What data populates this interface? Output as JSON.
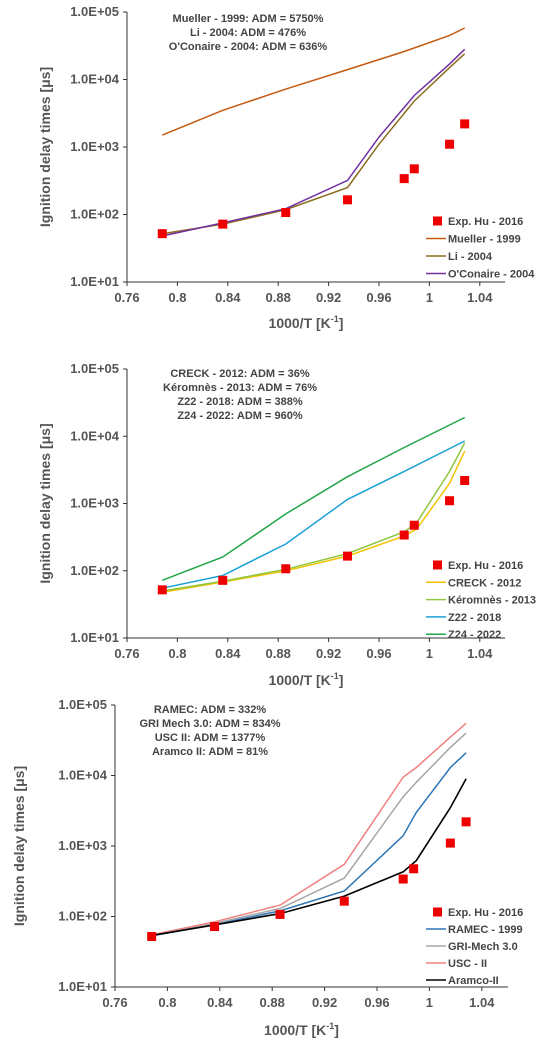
{
  "chart_data": [
    {
      "type": "line",
      "yscale": "log",
      "xlabel": "1000/T [K",
      "xlabel_sup": "-1",
      "xlabel_end": "]",
      "ylabel": "Ignition delay times [μs]",
      "xlim": [
        0.76,
        1.06
      ],
      "ylim": [
        10,
        100000
      ],
      "x_ticks": [
        "0.76",
        "0.8",
        "0.84",
        "0.88",
        "0.92",
        "0.96",
        "1",
        "1.04"
      ],
      "x_tick_values": [
        0.76,
        0.8,
        0.84,
        0.88,
        0.92,
        0.96,
        1.0,
        1.04
      ],
      "y_ticks": [
        "1.0E+01",
        "1.0E+02",
        "1.0E+03",
        "1.0E+04",
        "1.0E+05"
      ],
      "y_tick_values": [
        10,
        100,
        1000,
        10000,
        100000
      ],
      "annotations": [
        "Mueller - 1999: ADM = 5750%",
        "Li - 2004: ADM = 476%",
        "O'Conaire - 2004: ADM = 636%"
      ],
      "legend_position": "bottom-right",
      "experiment": {
        "name": "Exp. Hu - 2016",
        "color": "#ee0000",
        "x": [
          0.788,
          0.836,
          0.886,
          0.935,
          0.98,
          0.988,
          1.016,
          1.028
        ],
        "y": [
          52,
          72,
          107,
          165,
          340,
          475,
          1100,
          2200
        ]
      },
      "series": [
        {
          "name": "Mueller - 1999",
          "color": "#c55a11",
          "x": [
            0.788,
            0.836,
            0.886,
            0.935,
            0.98,
            1.016,
            1.028
          ],
          "y": [
            1500,
            3500,
            7200,
            14000,
            26000,
            45000,
            58000
          ]
        },
        {
          "name": "Li - 2004",
          "color": "#8c6d1f",
          "x": [
            0.788,
            0.836,
            0.886,
            0.935,
            0.96,
            0.988,
            1.016,
            1.028
          ],
          "y": [
            52,
            72,
            118,
            250,
            1100,
            4800,
            15000,
            24000
          ]
        },
        {
          "name": "O'Conaire - 2004",
          "color": "#7030a0",
          "x": [
            0.788,
            0.836,
            0.886,
            0.935,
            0.96,
            0.988,
            1.016,
            1.028
          ],
          "y": [
            48,
            75,
            122,
            320,
            1400,
            5800,
            17000,
            28000
          ]
        }
      ]
    },
    {
      "type": "line",
      "yscale": "log",
      "xlabel": "1000/T [K",
      "xlabel_sup": "-1",
      "xlabel_end": "]",
      "ylabel": "Ignition delay times [μs]",
      "xlim": [
        0.76,
        1.06
      ],
      "ylim": [
        10,
        100000
      ],
      "x_ticks": [
        "0.76",
        "0.8",
        "0.84",
        "0.88",
        "0.92",
        "0.96",
        "1",
        "1.04"
      ],
      "x_tick_values": [
        0.76,
        0.8,
        0.84,
        0.88,
        0.92,
        0.96,
        1.0,
        1.04
      ],
      "y_ticks": [
        "1.0E+01",
        "1.0E+02",
        "1.0E+03",
        "1.0E+04",
        "1.0E+05"
      ],
      "y_tick_values": [
        10,
        100,
        1000,
        10000,
        100000
      ],
      "annotations": [
        "CRECK - 2012: ADM = 36%",
        "Kéromnès - 2013: ADM = 76%",
        "Z22 - 2018: ADM = 388%",
        "Z24 - 2022: ADM = 960%"
      ],
      "legend_position": "bottom-right",
      "experiment": {
        "name": "Exp. Hu - 2016",
        "color": "#ee0000",
        "x": [
          0.788,
          0.836,
          0.886,
          0.935,
          0.98,
          0.988,
          1.016,
          1.028
        ],
        "y": [
          52,
          72,
          107,
          165,
          340,
          475,
          1100,
          2200
        ]
      },
      "series": [
        {
          "name": "CRECK - 2012",
          "color": "#f2c200",
          "x": [
            0.788,
            0.836,
            0.886,
            0.935,
            0.98,
            0.99,
            1.016,
            1.028
          ],
          "y": [
            48,
            68,
            100,
            165,
            330,
            420,
            2000,
            6000
          ]
        },
        {
          "name": "Kéromnès - 2013",
          "color": "#8ec63f",
          "x": [
            0.788,
            0.836,
            0.886,
            0.935,
            0.98,
            0.99,
            1.016,
            1.028
          ],
          "y": [
            50,
            70,
            105,
            180,
            380,
            520,
            3000,
            8000
          ]
        },
        {
          "name": "Z22 - 2018",
          "color": "#1ca0d4",
          "x": [
            0.788,
            0.836,
            0.886,
            0.935,
            0.98,
            1.028
          ],
          "y": [
            55,
            85,
            250,
            1150,
            3000,
            8500
          ]
        },
        {
          "name": "Z24 - 2022",
          "color": "#21a548",
          "x": [
            0.788,
            0.836,
            0.886,
            0.935,
            0.98,
            1.028
          ],
          "y": [
            72,
            160,
            700,
            2500,
            6800,
            19000
          ]
        }
      ]
    },
    {
      "type": "line",
      "yscale": "log",
      "xlabel": "1000/T [K",
      "xlabel_sup": "-1",
      "xlabel_end": "]",
      "ylabel": "Ignition delay times [μs]",
      "xlim": [
        0.76,
        1.06
      ],
      "ylim": [
        10,
        100000
      ],
      "x_ticks": [
        "0.76",
        "0.8",
        "0.84",
        "0.88",
        "0.92",
        "0.96",
        "1",
        "1.04"
      ],
      "x_tick_values": [
        0.76,
        0.8,
        0.84,
        0.88,
        0.92,
        0.96,
        1.0,
        1.04
      ],
      "y_ticks": [
        "1.0E+01",
        "1.0E+02",
        "1.0E+03",
        "1.0E+04",
        "1.0E+05"
      ],
      "y_tick_values": [
        10,
        100,
        1000,
        10000,
        100000
      ],
      "annotations": [
        "RAMEC: ADM = 332%",
        "GRI Mech 3.0: ADM = 834%",
        "USC II: ADM = 1377%",
        "Aramco II: ADM = 81%"
      ],
      "legend_position": "bottom-right",
      "experiment": {
        "name": "Exp. Hu - 2016",
        "color": "#ee0000",
        "x": [
          0.788,
          0.836,
          0.886,
          0.935,
          0.98,
          0.988,
          1.016,
          1.028
        ],
        "y": [
          52,
          72,
          107,
          165,
          340,
          475,
          1100,
          2200
        ]
      },
      "series": [
        {
          "name": "RAMEC - 1999",
          "color": "#2e75b6",
          "x": [
            0.788,
            0.836,
            0.886,
            0.935,
            0.98,
            0.99,
            1.016,
            1.028
          ],
          "y": [
            53,
            77,
            120,
            230,
            1400,
            3000,
            13000,
            21000
          ]
        },
        {
          "name": "GRI-Mech 3.0",
          "color": "#a6a6a6",
          "x": [
            0.788,
            0.836,
            0.886,
            0.935,
            0.98,
            0.99,
            1.016,
            1.028
          ],
          "y": [
            54,
            80,
            130,
            350,
            5000,
            8000,
            25000,
            40000
          ]
        },
        {
          "name": "USC - II",
          "color": "#f08080",
          "x": [
            0.788,
            0.836,
            0.886,
            0.935,
            0.98,
            0.99,
            1.016,
            1.028
          ],
          "y": [
            55,
            84,
            145,
            550,
            9500,
            13000,
            35000,
            55000
          ]
        },
        {
          "name": "Aramco-II",
          "color": "#000000",
          "x": [
            0.788,
            0.836,
            0.886,
            0.935,
            0.98,
            0.99,
            1.016,
            1.028
          ],
          "y": [
            54,
            76,
            110,
            195,
            430,
            620,
            3500,
            9000
          ]
        }
      ]
    }
  ]
}
